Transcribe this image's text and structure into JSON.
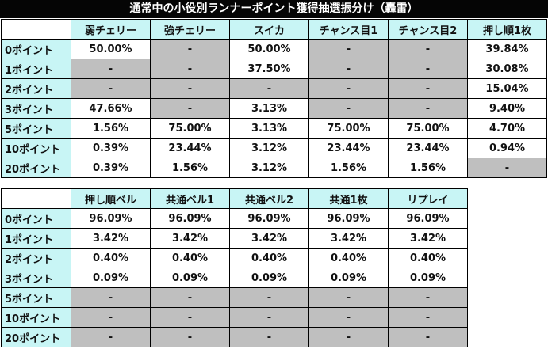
{
  "title": "通常中の小役別ランナーポイント獲得抽選振分け（轟雷）",
  "colors": {
    "header_bg": "#c8f5f5",
    "unavailable_bg": "#bfbfbf",
    "title_bg": "#050505",
    "title_text": "#ffffff"
  },
  "table1": {
    "columns": [
      "弱チェリー",
      "強チェリー",
      "スイカ",
      "チャンス目1",
      "チャンス目2",
      "押し順1枚"
    ],
    "rows": [
      {
        "label": "0ポイント",
        "cells": [
          "50.00%",
          "-",
          "50.00%",
          "-",
          "-",
          "39.84%"
        ]
      },
      {
        "label": "1ポイント",
        "cells": [
          "-",
          "-",
          "37.50%",
          "-",
          "-",
          "30.08%"
        ]
      },
      {
        "label": "2ポイント",
        "cells": [
          "-",
          "-",
          "-",
          "-",
          "-",
          "15.04%"
        ]
      },
      {
        "label": "3ポイント",
        "cells": [
          "47.66%",
          "-",
          "3.13%",
          "-",
          "-",
          "9.40%"
        ]
      },
      {
        "label": "5ポイント",
        "cells": [
          "1.56%",
          "75.00%",
          "3.13%",
          "75.00%",
          "75.00%",
          "4.70%"
        ]
      },
      {
        "label": "10ポイント",
        "cells": [
          "0.39%",
          "23.44%",
          "3.12%",
          "23.44%",
          "23.44%",
          "0.94%"
        ]
      },
      {
        "label": "20ポイント",
        "cells": [
          "0.39%",
          "1.56%",
          "3.12%",
          "1.56%",
          "1.56%",
          "-"
        ]
      }
    ],
    "unavailable": [
      [
        false,
        true,
        false,
        true,
        true,
        false
      ],
      [
        true,
        true,
        false,
        true,
        true,
        false
      ],
      [
        true,
        true,
        true,
        true,
        true,
        false
      ],
      [
        false,
        true,
        false,
        true,
        true,
        false
      ],
      [
        false,
        false,
        false,
        false,
        false,
        false
      ],
      [
        false,
        false,
        false,
        false,
        false,
        false
      ],
      [
        false,
        false,
        false,
        false,
        false,
        true
      ]
    ]
  },
  "table2": {
    "columns": [
      "押し順ベル",
      "共通ベル1",
      "共通ベル2",
      "共通1枚",
      "リプレイ"
    ],
    "rows": [
      {
        "label": "0ポイント",
        "cells": [
          "96.09%",
          "96.09%",
          "96.09%",
          "96.09%",
          "96.09%"
        ]
      },
      {
        "label": "1ポイント",
        "cells": [
          "3.42%",
          "3.42%",
          "3.42%",
          "3.42%",
          "3.42%"
        ]
      },
      {
        "label": "2ポイント",
        "cells": [
          "0.40%",
          "0.40%",
          "0.40%",
          "0.40%",
          "0.40%"
        ]
      },
      {
        "label": "3ポイント",
        "cells": [
          "0.09%",
          "0.09%",
          "0.09%",
          "0.09%",
          "0.09%"
        ]
      },
      {
        "label": "5ポイント",
        "cells": [
          "-",
          "-",
          "-",
          "-",
          "-"
        ]
      },
      {
        "label": "10ポイント",
        "cells": [
          "-",
          "-",
          "-",
          "-",
          "-"
        ]
      },
      {
        "label": "20ポイント",
        "cells": [
          "-",
          "-",
          "-",
          "-",
          "-"
        ]
      }
    ],
    "unavailable": [
      [
        false,
        false,
        false,
        false,
        false
      ],
      [
        false,
        false,
        false,
        false,
        false
      ],
      [
        false,
        false,
        false,
        false,
        false
      ],
      [
        false,
        false,
        false,
        false,
        false
      ],
      [
        true,
        true,
        true,
        true,
        true
      ],
      [
        true,
        true,
        true,
        true,
        true
      ],
      [
        true,
        true,
        true,
        true,
        true
      ]
    ]
  }
}
